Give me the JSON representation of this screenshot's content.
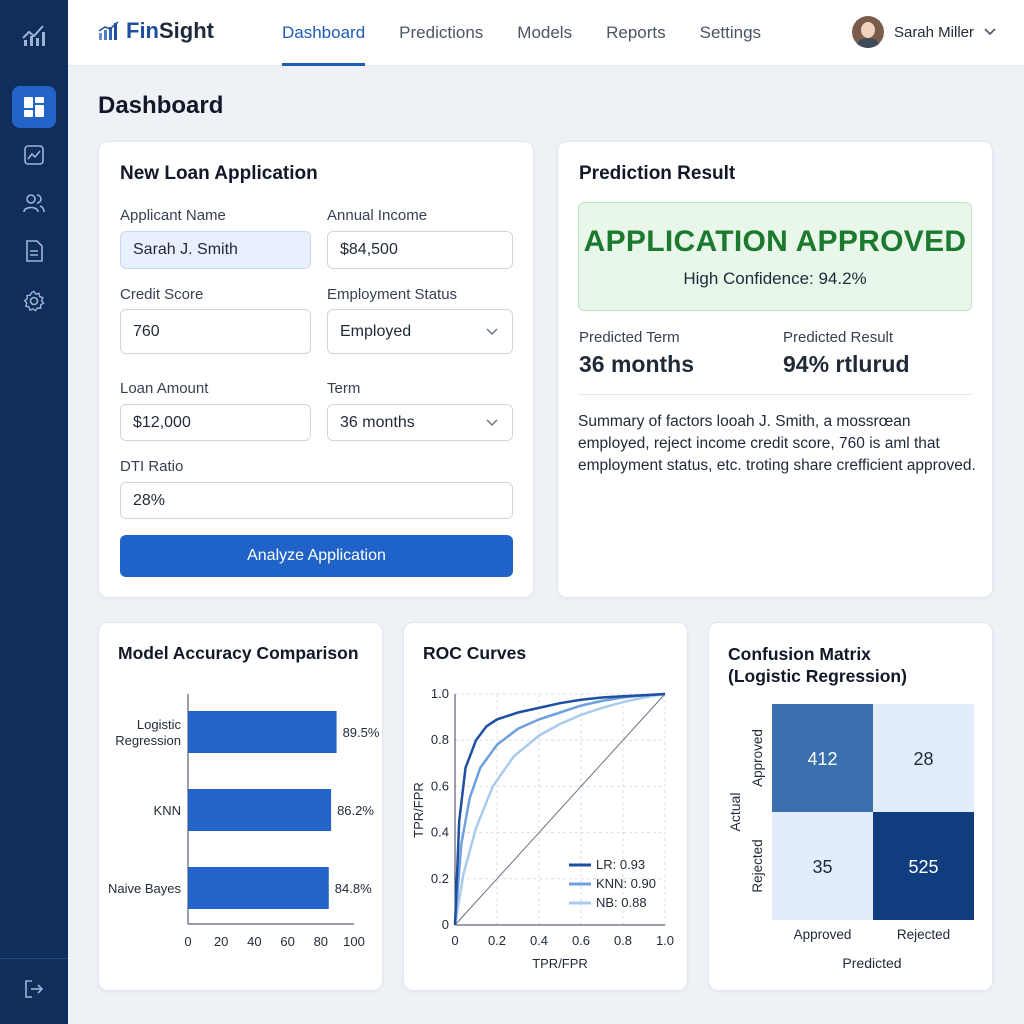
{
  "app": {
    "name_prefix": "Fin",
    "name_suffix": "Sight"
  },
  "nav": [
    {
      "label": "Dashboard",
      "active": true
    },
    {
      "label": "Predictions",
      "active": false
    },
    {
      "label": "Models",
      "active": false
    },
    {
      "label": "Reports",
      "active": false
    },
    {
      "label": "Settings",
      "active": false
    }
  ],
  "user": {
    "name": "Sarah Miller"
  },
  "page": {
    "title": "Dashboard"
  },
  "sidebar": {
    "icons": [
      "logo-chart-icon",
      "dashboard-icon",
      "analytics-icon",
      "users-icon",
      "document-icon",
      "settings-icon",
      "logout-icon"
    ]
  },
  "form": {
    "title": "New Loan Application",
    "applicant_name_label": "Applicant Name",
    "applicant_name_value": "Sarah J. Smith",
    "annual_income_label": "Annual Income",
    "annual_income_value": "$84,500",
    "credit_score_label": "Credit Score",
    "credit_score_value": "760",
    "employment_status_label": "Employment Status",
    "employment_status_value": "Employed",
    "loan_amount_label": "Loan Amount",
    "loan_amount_value": "$12,000",
    "term_label": "Term",
    "term_value": "36 months",
    "dti_label": "DTI Ratio",
    "dti_value": "28%",
    "submit_label": "Analyze Application"
  },
  "prediction": {
    "title": "Prediction Result",
    "status": "APPLICATION APPROVED",
    "confidence": "High Confidence: 94.2%",
    "term_label": "Predicted Term",
    "term_value": "36 months",
    "result_label": "Predicted Result",
    "result_value": "94% rtlurud",
    "summary": "Summary of factors looah J. Smith, a mossrœan employed, reject income credit score, 760 is aml that employment status, etc. troting share crefficient approved."
  },
  "colors": {
    "sidebar": "#0f2e5c",
    "primary": "#1f63c9",
    "approved": "#1c7a2e",
    "approved_bg": "#e9f6ea"
  },
  "charts": {
    "accuracy": {
      "title": "Model Accuracy Comparison",
      "chart_data": {
        "type": "bar",
        "orientation": "horizontal",
        "categories": [
          "Logistic Regression",
          "KNN",
          "Naive Bayes"
        ],
        "category_lines": [
          [
            "Logistic",
            "Regression"
          ],
          [
            "KNN"
          ],
          [
            "Naive Bayes"
          ]
        ],
        "values": [
          89.5,
          86.2,
          84.8
        ],
        "value_labels": [
          "89.5%",
          "86.2%",
          "84.8%"
        ],
        "xlim": [
          0,
          100
        ],
        "xticks": [
          "0",
          "20",
          "40",
          "60",
          "80",
          "100"
        ],
        "color": "#2463c7"
      }
    },
    "roc": {
      "title": "ROC Curves",
      "chart_data": {
        "type": "line",
        "xlabel": "TPR/FPR",
        "ylabel": "TPR/FPR",
        "xlim": [
          0,
          1
        ],
        "ylim": [
          0,
          1
        ],
        "xticks": [
          "0",
          "0.2",
          "0.4",
          "0.6",
          "0.8",
          "1.0"
        ],
        "yticks": [
          "0",
          "0.2",
          "0.4",
          "0.6",
          "0.8",
          "1.0"
        ],
        "grid": true,
        "diagonal": true,
        "legend_position": "bottom-right",
        "series": [
          {
            "name": "LR: 0.93",
            "color": "#1e4fa0",
            "x": [
              0,
              0.02,
              0.05,
              0.1,
              0.15,
              0.2,
              0.3,
              0.4,
              0.5,
              0.6,
              0.7,
              0.8,
              0.9,
              1.0
            ],
            "y": [
              0,
              0.45,
              0.68,
              0.8,
              0.86,
              0.89,
              0.92,
              0.94,
              0.96,
              0.975,
              0.985,
              0.99,
              0.995,
              1.0
            ]
          },
          {
            "name": "KNN: 0.90",
            "color": "#6ea0dd",
            "x": [
              0,
              0.03,
              0.07,
              0.12,
              0.2,
              0.3,
              0.4,
              0.5,
              0.6,
              0.7,
              0.8,
              0.9,
              1.0
            ],
            "y": [
              0,
              0.35,
              0.55,
              0.68,
              0.78,
              0.85,
              0.89,
              0.92,
              0.95,
              0.97,
              0.985,
              0.995,
              1.0
            ]
          },
          {
            "name": "NB: 0.88",
            "color": "#a9cbee",
            "x": [
              0,
              0.04,
              0.1,
              0.18,
              0.28,
              0.4,
              0.5,
              0.6,
              0.7,
              0.8,
              0.9,
              1.0
            ],
            "y": [
              0,
              0.22,
              0.42,
              0.6,
              0.73,
              0.82,
              0.87,
              0.91,
              0.94,
              0.965,
              0.985,
              1.0
            ]
          }
        ]
      }
    },
    "confusion": {
      "title_line1": "Confusion Matrix",
      "title_line2": "(Logistic Regression)",
      "chart_data": {
        "type": "heatmap",
        "row_axis_label": "Actual",
        "col_axis_label": "Predicted",
        "rows": [
          "Approved",
          "Rejected"
        ],
        "cols": [
          "Approved",
          "Rejected"
        ],
        "values": [
          [
            412,
            28
          ],
          [
            35,
            525
          ]
        ],
        "cell_colors": [
          [
            "#3a6fb0",
            "#e3edf9"
          ],
          [
            "#e3edf9",
            "#0f3d7e"
          ]
        ],
        "text_colors": [
          [
            "#ffffff",
            "#1f2937"
          ],
          [
            "#1f2937",
            "#ffffff"
          ]
        ]
      }
    }
  }
}
